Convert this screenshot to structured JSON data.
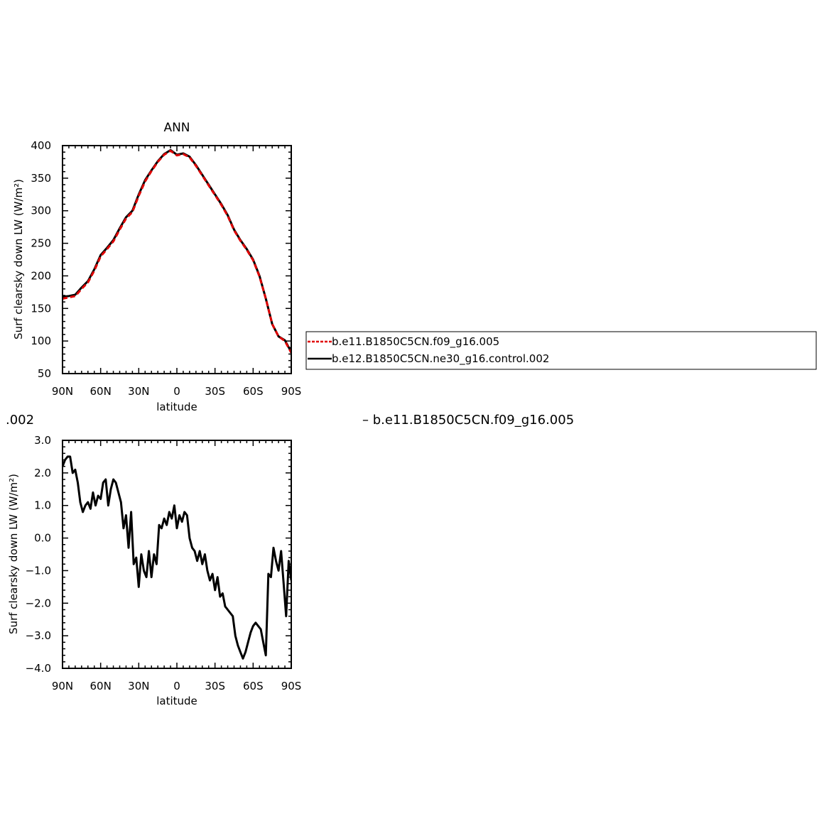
{
  "figure": {
    "top_title": "ANN",
    "diff_title_left": ".002",
    "diff_title_right": "– b.e11.B1850C5CN.f09_g16.005"
  },
  "legend": {
    "entries": [
      {
        "label": "b.e11.B1850C5CN.f09_g16.005",
        "color": "#e00000",
        "style": "dashed"
      },
      {
        "label": "b.e12.B1850C5CN.ne30_g16.control.002",
        "color": "#000000",
        "style": "solid"
      }
    ]
  },
  "chart_data": [
    {
      "type": "line",
      "title": "ANN",
      "xlabel": "latitude",
      "ylabel": "Surf clearsky down LW (W/m²)",
      "xlim": [
        90,
        -90
      ],
      "ylim": [
        50,
        400
      ],
      "xticks": [
        {
          "v": 90,
          "label": "90N"
        },
        {
          "v": 60,
          "label": "60N"
        },
        {
          "v": 30,
          "label": "30N"
        },
        {
          "v": 0,
          "label": "0"
        },
        {
          "v": -30,
          "label": "30S"
        },
        {
          "v": -60,
          "label": "60S"
        },
        {
          "v": -90,
          "label": "90S"
        }
      ],
      "yticks": [
        {
          "v": 400,
          "label": "400"
        },
        {
          "v": 350,
          "label": "350"
        },
        {
          "v": 300,
          "label": "300"
        },
        {
          "v": 250,
          "label": "250"
        },
        {
          "v": 200,
          "label": "200"
        },
        {
          "v": 150,
          "label": "150"
        },
        {
          "v": 100,
          "label": "100"
        },
        {
          "v": 50,
          "label": "50"
        }
      ],
      "x": [
        90,
        85,
        80,
        75,
        70,
        65,
        60,
        55,
        50,
        45,
        40,
        35,
        30,
        25,
        20,
        15,
        10,
        5,
        0,
        -5,
        -10,
        -15,
        -20,
        -25,
        -30,
        -35,
        -40,
        -45,
        -50,
        -55,
        -60,
        -65,
        -70,
        -75,
        -80,
        -85,
        -90
      ],
      "series": [
        {
          "name": "b.e12.B1850C5CN.ne30_g16.control.002",
          "color": "#000000",
          "dash": false,
          "values": [
            168,
            169,
            171,
            182,
            192,
            210,
            232,
            243,
            255,
            273,
            290,
            300,
            325,
            347,
            362,
            376,
            387,
            393,
            386,
            388,
            383,
            370,
            355,
            340,
            325,
            310,
            293,
            271,
            255,
            241,
            225,
            200,
            165,
            126,
            107,
            101,
            83
          ]
        },
        {
          "name": "b.e11.B1850C5CN.f09_g16.005",
          "color": "#e00000",
          "dash": true,
          "values": [
            165,
            167,
            169,
            180,
            190,
            208,
            230,
            241,
            253,
            271,
            288,
            298,
            323,
            345,
            361,
            375,
            386,
            392,
            385,
            387,
            382,
            369,
            354,
            339,
            324,
            309,
            292,
            270,
            254,
            240,
            224,
            199,
            165,
            126,
            107,
            100,
            82
          ]
        }
      ]
    },
    {
      "type": "line",
      "title": "",
      "xlabel": "latitude",
      "ylabel": "Surf clearsky down LW (W/m²)",
      "xlim": [
        90,
        -90
      ],
      "ylim": [
        -4.0,
        3.0
      ],
      "xticks": [
        {
          "v": 90,
          "label": "90N"
        },
        {
          "v": 60,
          "label": "60N"
        },
        {
          "v": 30,
          "label": "30N"
        },
        {
          "v": 0,
          "label": "0"
        },
        {
          "v": -30,
          "label": "30S"
        },
        {
          "v": -60,
          "label": "60S"
        },
        {
          "v": -90,
          "label": "90S"
        }
      ],
      "yticks": [
        {
          "v": 3.0,
          "label": "3.0"
        },
        {
          "v": 2.0,
          "label": "2.0"
        },
        {
          "v": 1.0,
          "label": "1.0"
        },
        {
          "v": 0.0,
          "label": "0.0"
        },
        {
          "v": -1.0,
          "label": "−1.0"
        },
        {
          "v": -2.0,
          "label": "−2.0"
        },
        {
          "v": -3.0,
          "label": "−3.0"
        },
        {
          "v": -4.0,
          "label": "−4.0"
        }
      ],
      "x": [
        90,
        88,
        86,
        84,
        82,
        80,
        78,
        76,
        74,
        72,
        70,
        68,
        66,
        64,
        62,
        60,
        58,
        56,
        54,
        52,
        50,
        48,
        46,
        44,
        42,
        40,
        38,
        36,
        34,
        32,
        30,
        28,
        26,
        24,
        22,
        20,
        18,
        16,
        14,
        12,
        10,
        8,
        6,
        4,
        2,
        0,
        -2,
        -4,
        -6,
        -8,
        -10,
        -12,
        -14,
        -16,
        -18,
        -20,
        -22,
        -24,
        -26,
        -28,
        -30,
        -32,
        -34,
        -36,
        -38,
        -40,
        -42,
        -44,
        -46,
        -48,
        -50,
        -52,
        -54,
        -56,
        -58,
        -60,
        -62,
        -64,
        -66,
        -68,
        -70,
        -72,
        -74,
        -76,
        -78,
        -80,
        -82,
        -84,
        -86,
        -88,
        -90
      ],
      "series": [
        {
          "name": "",
          "color": "#000000",
          "dash": false,
          "values": [
            2.2,
            2.4,
            2.5,
            2.5,
            2.0,
            2.1,
            1.7,
            1.1,
            0.8,
            1.0,
            1.1,
            0.9,
            1.4,
            1.0,
            1.3,
            1.2,
            1.7,
            1.8,
            1.0,
            1.5,
            1.8,
            1.7,
            1.4,
            1.1,
            0.3,
            0.7,
            -0.3,
            0.8,
            -0.8,
            -0.6,
            -1.5,
            -0.5,
            -1.0,
            -1.2,
            -0.4,
            -1.2,
            -0.5,
            -0.8,
            0.4,
            0.3,
            0.6,
            0.4,
            0.8,
            0.6,
            1.0,
            0.3,
            0.7,
            0.5,
            0.8,
            0.7,
            0.0,
            -0.3,
            -0.4,
            -0.7,
            -0.4,
            -0.8,
            -0.5,
            -1.0,
            -1.3,
            -1.1,
            -1.6,
            -1.2,
            -1.8,
            -1.7,
            -2.1,
            -2.2,
            -2.3,
            -2.4,
            -3.0,
            -3.3,
            -3.5,
            -3.7,
            -3.5,
            -3.2,
            -2.9,
            -2.7,
            -2.6,
            -2.7,
            -2.8,
            -3.2,
            -3.6,
            -1.1,
            -1.2,
            -0.3,
            -0.7,
            -1.0,
            -0.4,
            -1.4,
            -2.4,
            -0.7,
            -1.3
          ]
        }
      ]
    }
  ]
}
